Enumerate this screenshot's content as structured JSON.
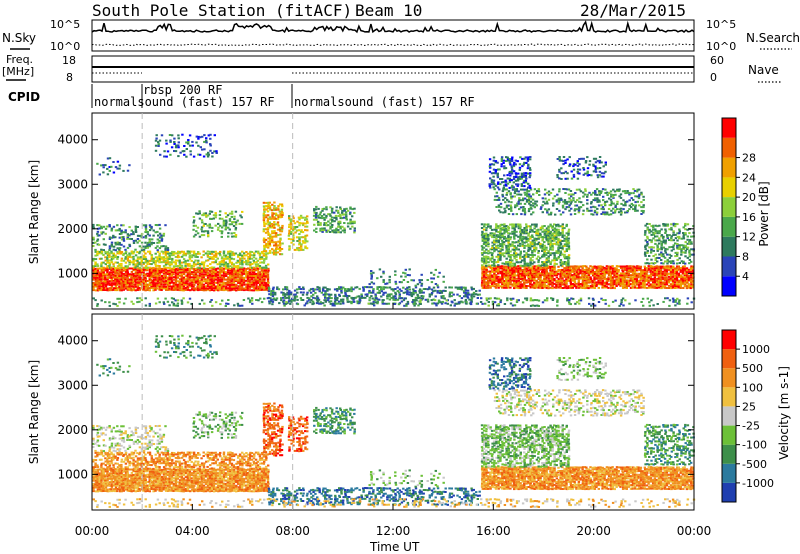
{
  "header": {
    "station": "South Pole Station (fitACF)",
    "beam": "Beam 10",
    "date": "28/Mar/2015"
  },
  "labels": {
    "nsky": "N.Sky",
    "nsearch": "N.Search",
    "freq_line1": "Freq.",
    "freq_line2": "[MHz]",
    "nave": "Nave",
    "cpid": "CPID",
    "nsky_top": "10^5",
    "nsky_bottom": "10^0",
    "freq_top": "18",
    "freq_bottom": "8",
    "nave_top": "60",
    "nave_bottom": "0"
  },
  "cpid_bands": [
    {
      "label": "normalsound (fast) 157 RF",
      "start_hour": 0.0
    },
    {
      "label": "rbsp 200 RF",
      "start_hour": 2.0
    },
    {
      "label": "normalsound (fast) 157 RF",
      "start_hour": 8.0
    }
  ],
  "chart_data": [
    {
      "type": "heatmap",
      "name": "power",
      "ylabel": "Slant Range [km]",
      "xlabel": "",
      "xlim_hours": [
        0,
        24
      ],
      "ylim": [
        200,
        4600
      ],
      "yticks": [
        1000,
        2000,
        3000,
        4000
      ],
      "colorbar": {
        "title": "Power [dB]",
        "ticks": [
          "4",
          "8",
          "12",
          "16",
          "20",
          "24",
          "28"
        ],
        "colors": [
          "#0000ff",
          "#2a44b8",
          "#2e7a5e",
          "#4aa84a",
          "#8ccf3a",
          "#e8d000",
          "#f0a000",
          "#f06000",
          "#ff0000"
        ]
      }
    },
    {
      "type": "heatmap",
      "name": "velocity",
      "ylabel": "Slant Range [km]",
      "xlabel": "Time UT",
      "xlim_hours": [
        0,
        24
      ],
      "ylim": [
        200,
        4600
      ],
      "yticks": [
        1000,
        2000,
        3000,
        4000
      ],
      "xticks": [
        "00:00",
        "04:00",
        "08:00",
        "12:00",
        "16:00",
        "20:00",
        "00:00"
      ],
      "colorbar": {
        "title": "Velocity [m s-1]",
        "ticks": [
          "1000",
          "500",
          "100",
          "25",
          "-25",
          "-100",
          "-500",
          "-1000"
        ],
        "colors": [
          "#1f3fb0",
          "#2b7a9e",
          "#3d8f4a",
          "#6cc038",
          "#c8c8c8",
          "#f0c040",
          "#f09020",
          "#f06010",
          "#ff0000"
        ]
      }
    }
  ]
}
